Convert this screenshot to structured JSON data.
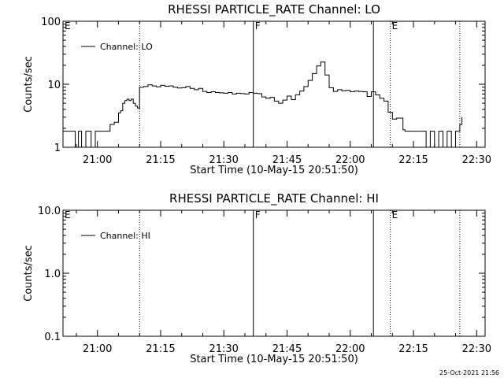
{
  "chart_data": [
    {
      "type": "line",
      "title": "RHESSI PARTICLE_RATE Channel: LO",
      "xlabel": "Start Time (10-May-15 20:51:50)",
      "ylabel": "Counts/sec",
      "yscale": "log",
      "ylim": [
        1,
        100
      ],
      "xlim": [
        "20:51:50",
        "22:32:00"
      ],
      "x_tick_labels": [
        "21:00",
        "21:15",
        "21:30",
        "21:45",
        "22:00",
        "22:15",
        "22:30"
      ],
      "y_tick_labels": [
        "1",
        "10",
        "100"
      ],
      "legend": {
        "label": "Channel: LO",
        "placement": "top-left"
      },
      "region_markers": [
        {
          "label": "E",
          "time": "20:51:50",
          "style": "none"
        },
        {
          "label": "",
          "time": "21:10:00",
          "style": "dotted"
        },
        {
          "label": "F",
          "time": "21:37:00",
          "style": "solid"
        },
        {
          "label": "",
          "time": "22:05:30",
          "style": "solid"
        },
        {
          "label": "E",
          "time": "22:09:30",
          "style": "dotted"
        },
        {
          "label": "",
          "time": "22:26:00",
          "style": "dotted"
        }
      ],
      "series": [
        {
          "name": "Channel: LO",
          "x": [
            "20:51:50",
            "20:54:30",
            "20:54:45",
            "20:55:15",
            "20:55:30",
            "20:56:00",
            "20:56:15",
            "20:57:00",
            "20:57:15",
            "20:57:45",
            "20:58:15",
            "20:58:30",
            "20:59:15",
            "20:59:30",
            "21:00:00",
            "21:00:30",
            "21:01:00",
            "21:01:30",
            "21:02:00",
            "21:02:30",
            "21:03:00",
            "21:03:30",
            "21:04:00",
            "21:04:30",
            "21:05:00",
            "21:05:30",
            "21:06:00",
            "21:06:30",
            "21:07:00",
            "21:07:30",
            "21:08:00",
            "21:08:30",
            "21:09:00",
            "21:09:30",
            "21:10:00",
            "21:10:00",
            "21:11:00",
            "21:12:00",
            "21:13:00",
            "21:14:00",
            "21:15:00",
            "21:16:00",
            "21:17:00",
            "21:18:00",
            "21:19:00",
            "21:20:00",
            "21:21:00",
            "21:22:00",
            "21:23:00",
            "21:24:00",
            "21:25:00",
            "21:26:00",
            "21:27:00",
            "21:28:00",
            "21:29:00",
            "21:30:00",
            "21:31:00",
            "21:32:00",
            "21:33:00",
            "21:34:00",
            "21:35:00",
            "21:36:00",
            "21:37:00",
            "21:38:00",
            "21:39:00",
            "21:40:00",
            "21:41:00",
            "21:42:00",
            "21:43:00",
            "21:44:00",
            "21:45:00",
            "21:46:00",
            "21:47:00",
            "21:48:00",
            "21:49:00",
            "21:50:00",
            "21:51:00",
            "21:52:00",
            "21:53:00",
            "21:54:00",
            "21:55:00",
            "21:56:00",
            "21:57:00",
            "21:58:00",
            "21:59:00",
            "22:00:00",
            "22:01:00",
            "22:02:00",
            "22:03:00",
            "22:04:00",
            "22:05:00",
            "22:06:00",
            "22:07:00",
            "22:08:00",
            "22:09:00",
            "22:10:00",
            "22:11:00",
            "22:12:00",
            "22:12:30",
            "22:13:00",
            "22:14:00",
            "22:15:00",
            "22:16:00",
            "22:17:00",
            "22:18:00",
            "22:19:00",
            "22:20:00",
            "22:21:00",
            "22:22:00",
            "22:23:00",
            "22:24:00",
            "22:25:00",
            "22:26:00",
            "22:26:30"
          ],
          "values": [
            1.8,
            1.8,
            1,
            1,
            1.8,
            1.8,
            1,
            1,
            1.8,
            1.8,
            1.8,
            1,
            1,
            1.8,
            1.8,
            1.8,
            1.8,
            1.8,
            1.8,
            1.8,
            2.3,
            2.3,
            2.5,
            2.5,
            3.5,
            3.8,
            5,
            5.5,
            5.8,
            5.5,
            5.8,
            5.0,
            4.5,
            4.2,
            4.0,
            9.0,
            9.2,
            9.8,
            9.4,
            9.1,
            9.6,
            9.3,
            9.4,
            9.0,
            8.7,
            8.8,
            9.2,
            8.6,
            8.2,
            8.6,
            7.7,
            7.4,
            7.6,
            7.4,
            7.3,
            7.2,
            7.4,
            7.0,
            7.2,
            7.1,
            7.0,
            7.4,
            7.2,
            7.1,
            6.3,
            6.0,
            6.2,
            5.4,
            5.0,
            5.6,
            6.5,
            5.7,
            6.8,
            7.8,
            9.2,
            11.5,
            14.8,
            19.5,
            22.5,
            14,
            8.8,
            7.7,
            8.2,
            7.9,
            8.0,
            7.6,
            7.8,
            7.7,
            7.6,
            6.4,
            7.6,
            6.8,
            6.0,
            5.4,
            3.6,
            2.8,
            2.9,
            2.9,
            1.9,
            1.8,
            1.8,
            1.8,
            1.8,
            1.8,
            1,
            1.8,
            1,
            1.8,
            1,
            1.8,
            1,
            1.8,
            2.3,
            3.0
          ]
        }
      ]
    },
    {
      "type": "line",
      "title": "RHESSI PARTICLE_RATE Channel: HI",
      "xlabel": "Start Time (10-May-15 20:51:50)",
      "ylabel": "Counts/sec",
      "yscale": "log",
      "ylim": [
        0.1,
        10
      ],
      "xlim": [
        "20:51:50",
        "22:32:00"
      ],
      "x_tick_labels": [
        "21:00",
        "21:15",
        "21:30",
        "21:45",
        "22:00",
        "22:15",
        "22:30"
      ],
      "y_tick_labels": [
        "0.1",
        "1.0",
        "10.0"
      ],
      "legend": {
        "label": "Channel: HI",
        "placement": "top-left"
      },
      "region_markers": [
        {
          "label": "E",
          "time": "20:51:50",
          "style": "none"
        },
        {
          "label": "",
          "time": "21:10:00",
          "style": "dotted"
        },
        {
          "label": "F",
          "time": "21:37:00",
          "style": "solid"
        },
        {
          "label": "",
          "time": "22:05:30",
          "style": "solid"
        },
        {
          "label": "E",
          "time": "22:09:30",
          "style": "dotted"
        },
        {
          "label": "",
          "time": "22:26:00",
          "style": "dotted"
        }
      ],
      "series": [
        {
          "name": "Channel: HI",
          "x": [],
          "values": []
        }
      ]
    }
  ],
  "footer": {
    "timestamp": "25-Oct-2021 21:56"
  }
}
